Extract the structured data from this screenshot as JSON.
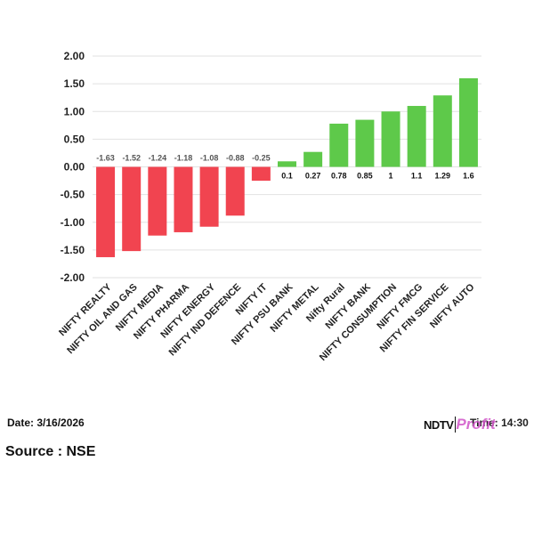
{
  "chart_data": {
    "type": "bar",
    "categories": [
      "NIFTY REALTY",
      "NIFTY OIL AND GAS",
      "NIFTY MEDIA",
      "NIFTY PHARMA",
      "NIFTY ENERGY",
      "NIFTY IND DEFENCE",
      "NIFTY IT",
      "NIFTY PSU BANK",
      "NIFTY METAL",
      "Nifty Rural",
      "NIFTY BANK",
      "NIFTY CONSUMPTION",
      "NIFTY FMCG",
      "NIFTY FIN SERVICE",
      "NIFTY AUTO"
    ],
    "values": [
      -1.63,
      -1.52,
      -1.24,
      -1.18,
      -1.08,
      -0.88,
      -0.25,
      0.1,
      0.27,
      0.78,
      0.85,
      1,
      1.1,
      1.29,
      1.6
    ],
    "data_labels": [
      "-1.63",
      "-1.52",
      "-1.24",
      "-1.18",
      "-1.08",
      "-0.88",
      "-0.25",
      "0.1",
      "0.27",
      "0.78",
      "0.85",
      "1",
      "1.1",
      "1.29",
      "1.6"
    ],
    "y_ticks": [
      "2.00",
      "1.50",
      "1.00",
      "0.50",
      "0.00",
      "-0.50",
      "-1.00",
      "-1.50",
      "-2.00"
    ],
    "ylim": [
      -2,
      2
    ],
    "grid": true,
    "colors": {
      "positive": "#5ec94a",
      "negative": "#f14450"
    },
    "title": "",
    "xlabel": "",
    "ylabel": ""
  },
  "footer": {
    "date": "Date: 3/16/2026",
    "source": "Source : NSE",
    "time": "Time: 14:30",
    "logo_ndtv": "NDTV",
    "logo_profit": "Profit"
  }
}
